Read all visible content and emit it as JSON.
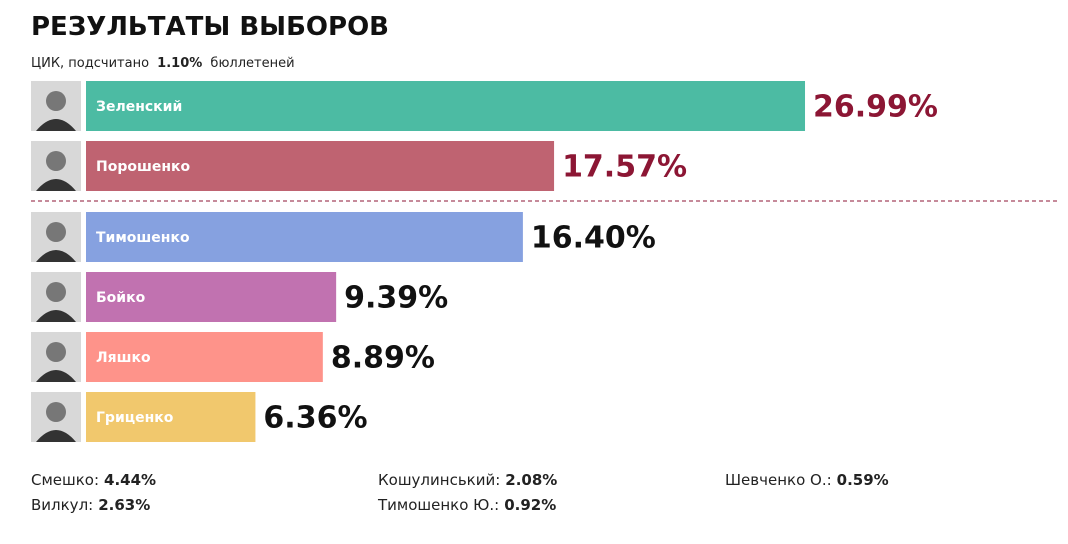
{
  "chart_data": {
    "type": "hbar",
    "title": "РЕЗУЛЬТАТЫ ВЫБОРОВ",
    "subtitle": {
      "source": "ЦИК, подсчитано",
      "counted": "1.10%",
      "unit": "бюллетеней"
    },
    "categories": [
      "Зеленский",
      "Порошенко",
      "Тимошенко",
      "Бойко",
      "Ляшко",
      "Гриценко"
    ],
    "values": [
      26.99,
      17.57,
      16.4,
      9.39,
      8.89,
      6.36
    ],
    "value_labels": [
      "26.99%",
      "17.57%",
      "16.40%",
      "9.39%",
      "8.89%",
      "6.36%"
    ],
    "colors": [
      "#4cbba3",
      "#bf6371",
      "#86a1e0",
      "#c172b0",
      "#fe938a",
      "#f1c86d"
    ],
    "value_label_colors": [
      "#8c1634",
      "#8c1634",
      "#111111",
      "#111111",
      "#111111",
      "#111111"
    ],
    "others": [
      [
        {
          "name": "Смешко:",
          "share": "4.44%"
        },
        {
          "name": "Вилкул:",
          "share": "2.63%"
        }
      ],
      [
        {
          "name": "Кошулинський:",
          "share": "2.08%"
        },
        {
          "name": "Тимошенко Ю.:",
          "share": "0.92%"
        }
      ],
      [
        {
          "name": "Шевченко О.:",
          "share": "0.59%"
        }
      ]
    ]
  }
}
